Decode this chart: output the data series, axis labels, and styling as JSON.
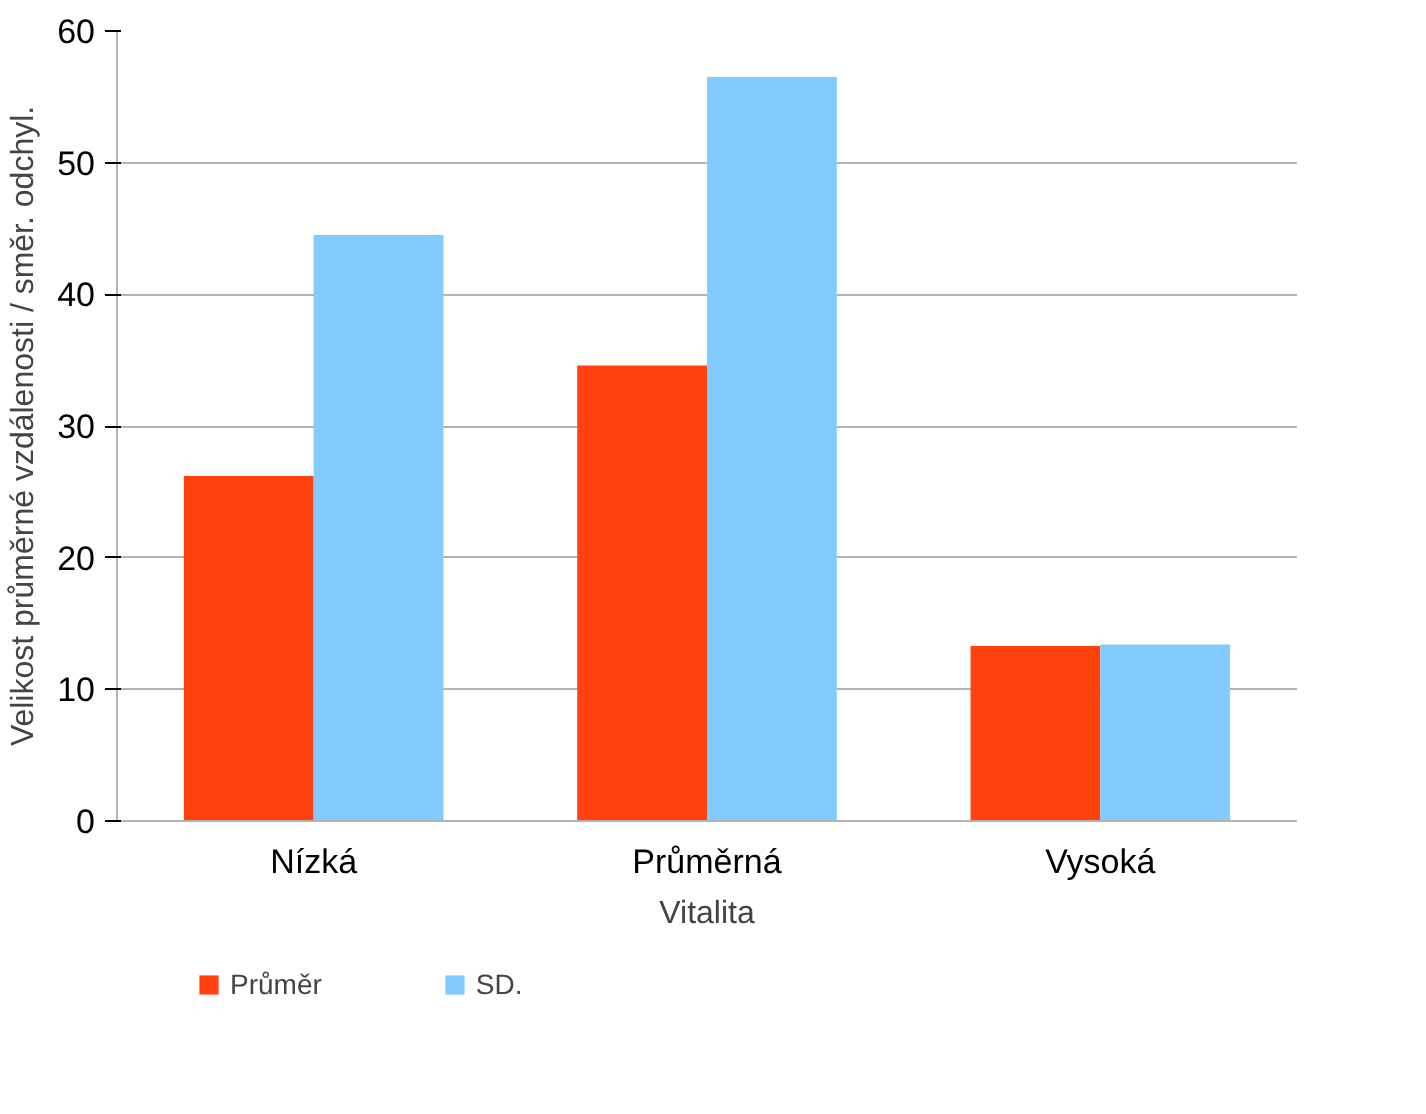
{
  "chart_data": {
    "type": "bar",
    "xlabel": "Vitalita",
    "ylabel": "Velikost průměrné vzdálenosti / směr. odchyl.",
    "categories": [
      "Nízká",
      "Průměrná",
      "Vysoká"
    ],
    "series": [
      {
        "name": "Průměr",
        "color": "#ff420e",
        "values": [
          26.2,
          34.6,
          13.3
        ]
      },
      {
        "name": "SD.",
        "color": "#83caff",
        "values": [
          44.5,
          56.5,
          13.4
        ]
      }
    ],
    "ylim": [
      0,
      60
    ],
    "yticks": [
      0,
      10,
      20,
      30,
      40,
      50,
      60
    ],
    "grid": "y",
    "legend": "bottom"
  }
}
